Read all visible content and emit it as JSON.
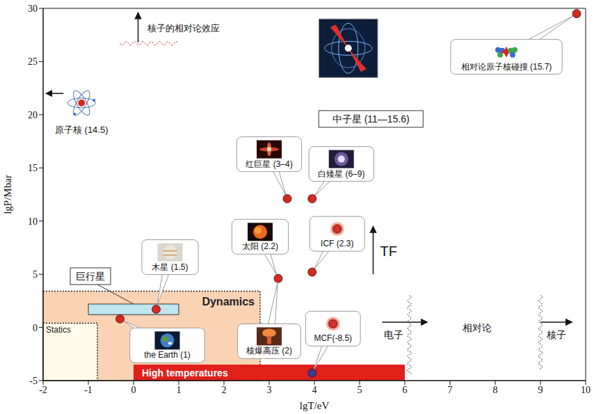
{
  "chart_data": {
    "type": "scatter",
    "x_label": "lgT/eV",
    "y_label": "lgP/Mbar",
    "xlim": [
      -2,
      10
    ],
    "xticks": [
      -2,
      -1,
      0,
      1,
      2,
      3,
      4,
      5,
      6,
      7,
      8,
      9,
      10
    ],
    "ylim": [
      -5,
      30
    ],
    "yticks": [
      -5,
      0,
      5,
      10,
      15,
      20,
      25,
      30
    ],
    "grid": false,
    "points": [
      {
        "label": "the Earth (1)",
        "x": -0.3,
        "y": 0.8,
        "color": "#d42a20"
      },
      {
        "label": "木星 (1.5)",
        "x": 0.5,
        "y": 1.7,
        "color": "#d42a20"
      },
      {
        "label": "太阳 (2.2)",
        "x": 3.2,
        "y": 4.6,
        "color": "#d42a20"
      },
      {
        "label": "ICF (2.3)",
        "x": 3.95,
        "y": 5.2,
        "color": "#d42a20"
      },
      {
        "label": "红巨星 (3–4)",
        "x": 3.4,
        "y": 12.1,
        "color": "#d42a20"
      },
      {
        "label": "白矮星 (6–9)",
        "x": 3.95,
        "y": 12.1,
        "color": "#d42a20"
      },
      {
        "label": "相对论原子核碰撞 (15.7)",
        "x": 9.8,
        "y": 29.5,
        "color": "#d42a20"
      },
      {
        "label": "MCF(-8.5)",
        "x": 3.95,
        "y": -4.3,
        "color": "#3b3b8f"
      }
    ],
    "regions": [
      {
        "label": "Dynamics",
        "x": [
          -2,
          2.8
        ],
        "y": [
          -5,
          3.4
        ],
        "color": "#fad3b4"
      },
      {
        "label": "Statics",
        "x": [
          -2,
          -0.8
        ],
        "y": [
          -5,
          0.4
        ],
        "color": "#fffbe8"
      },
      {
        "label": "巨行星",
        "x": [
          -1,
          1
        ],
        "y": [
          1.2,
          2.2
        ],
        "color": "#bfe6ee"
      },
      {
        "label": "High temperatures",
        "x": [
          0,
          6
        ],
        "y": [
          -5,
          -3.5
        ],
        "color": "#e0201b"
      }
    ],
    "annotations": [
      "核爆高压 (2)",
      "中子星 (11—15.6)",
      "原子核 (14.5)",
      "TF",
      "电子",
      "相对论",
      "核子",
      "核子的相对论效应"
    ]
  }
}
